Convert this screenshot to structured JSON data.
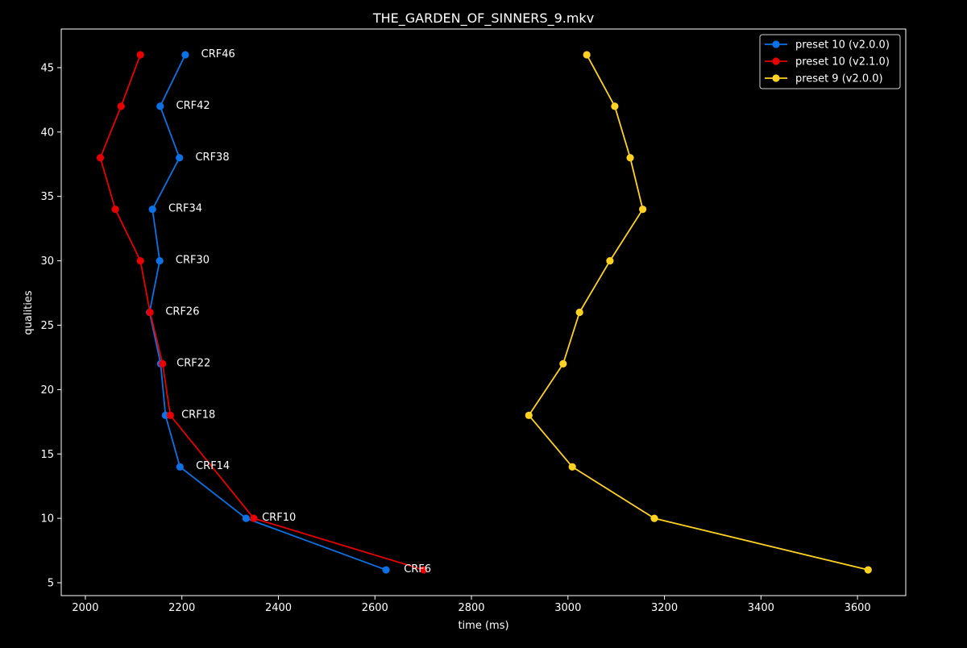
{
  "chart_data": {
    "type": "line",
    "title": "THE_GARDEN_OF_SINNERS_9.mkv",
    "xlabel": "time (ms)",
    "ylabel": "qualities",
    "xlim": [
      1950,
      3700
    ],
    "ylim": [
      4,
      48
    ],
    "xticks": [
      2000,
      2200,
      2400,
      2600,
      2800,
      3000,
      3200,
      3400,
      3600
    ],
    "yticks": [
      5,
      10,
      15,
      20,
      25,
      30,
      35,
      40,
      45
    ],
    "grid": false,
    "legend_position": "top-right",
    "background": "#000000",
    "foreground": "#ffffff",
    "series": [
      {
        "name": "preset 10 (v2.0.0)",
        "color": "#0a72e6",
        "points": [
          {
            "x": 2623,
            "y": 6
          },
          {
            "x": 2333,
            "y": 10
          },
          {
            "x": 2196,
            "y": 14
          },
          {
            "x": 2166,
            "y": 18
          },
          {
            "x": 2156,
            "y": 22
          },
          {
            "x": 2133,
            "y": 26
          },
          {
            "x": 2154,
            "y": 30
          },
          {
            "x": 2139,
            "y": 34
          },
          {
            "x": 2195,
            "y": 38
          },
          {
            "x": 2155,
            "y": 42
          },
          {
            "x": 2207,
            "y": 46
          }
        ]
      },
      {
        "name": "preset 10 (v2.1.0)",
        "color": "#e80000",
        "points": [
          {
            "x": 2701,
            "y": 6
          },
          {
            "x": 2349,
            "y": 10
          },
          {
            "x": 2176,
            "y": 18
          },
          {
            "x": 2160,
            "y": 22
          },
          {
            "x": 2134,
            "y": 26
          },
          {
            "x": 2114,
            "y": 30
          },
          {
            "x": 2062,
            "y": 34
          },
          {
            "x": 2031,
            "y": 38
          },
          {
            "x": 2074,
            "y": 42
          },
          {
            "x": 2114,
            "y": 46
          }
        ]
      },
      {
        "name": "preset 9 (v2.0.0)",
        "color": "#ffd21f",
        "points": [
          {
            "x": 3622,
            "y": 6
          },
          {
            "x": 3179,
            "y": 10
          },
          {
            "x": 3009,
            "y": 14
          },
          {
            "x": 2919,
            "y": 18
          },
          {
            "x": 2990,
            "y": 22
          },
          {
            "x": 3024,
            "y": 26
          },
          {
            "x": 3087,
            "y": 30
          },
          {
            "x": 3155,
            "y": 34
          },
          {
            "x": 3129,
            "y": 38
          },
          {
            "x": 3097,
            "y": 42
          },
          {
            "x": 3039,
            "y": 46
          }
        ]
      }
    ],
    "annotations": [
      {
        "text": "CRF6",
        "x": 2660,
        "y": 6
      },
      {
        "text": "CRF10",
        "x": 2366,
        "y": 10
      },
      {
        "text": "CRF14",
        "x": 2229,
        "y": 14
      },
      {
        "text": "CRF18",
        "x": 2199,
        "y": 18
      },
      {
        "text": "CRF22",
        "x": 2189,
        "y": 22
      },
      {
        "text": "CRF26",
        "x": 2166,
        "y": 26
      },
      {
        "text": "CRF30",
        "x": 2187,
        "y": 30
      },
      {
        "text": "CRF34",
        "x": 2172,
        "y": 34
      },
      {
        "text": "CRF38",
        "x": 2228,
        "y": 38
      },
      {
        "text": "CRF42",
        "x": 2188,
        "y": 42
      },
      {
        "text": "CRF46",
        "x": 2240,
        "y": 46
      }
    ]
  }
}
